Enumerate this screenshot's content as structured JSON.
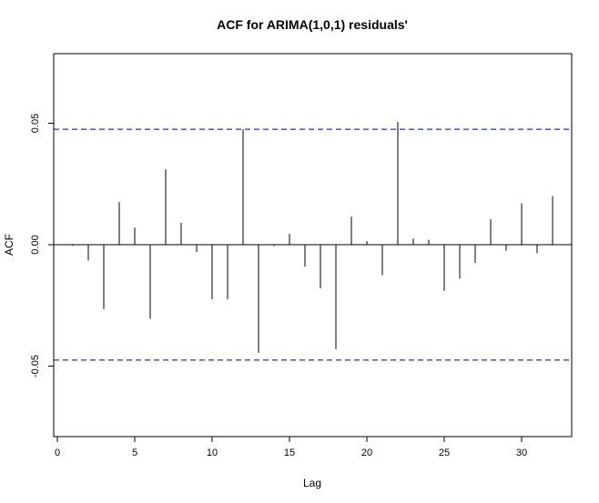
{
  "chart_data": {
    "type": "bar",
    "title": "ACF for ARIMA(1,0,1) residuals'",
    "xlabel": "Lag",
    "ylabel": "ACF",
    "xlim": [
      0,
      33
    ],
    "ylim": [
      -0.08,
      0.08
    ],
    "xticks": [
      0,
      5,
      10,
      15,
      20,
      25,
      30
    ],
    "xtick_labels": [
      "0",
      "5",
      "10",
      "15",
      "20",
      "25",
      "30"
    ],
    "yticks": [
      -0.05,
      0,
      0.05
    ],
    "ytick_labels": [
      "-0.05",
      "0.00",
      "0.05"
    ],
    "confidence_bound": 0.0475,
    "lags": [
      1,
      2,
      3,
      4,
      5,
      6,
      7,
      8,
      9,
      10,
      11,
      12,
      13,
      14,
      15,
      16,
      17,
      18,
      19,
      20,
      21,
      22,
      23,
      24,
      25,
      26,
      27,
      28,
      29,
      30,
      31,
      32
    ],
    "values": [
      -0.0005,
      -0.0065,
      -0.0265,
      0.0175,
      0.007,
      -0.0305,
      0.031,
      0.009,
      -0.003,
      -0.0225,
      -0.0225,
      0.0475,
      -0.0445,
      -0.0005,
      0.0045,
      -0.009,
      -0.018,
      -0.043,
      0.0115,
      0.0015,
      -0.0125,
      0.0505,
      0.0025,
      0.002,
      -0.019,
      -0.014,
      -0.0075,
      0.0105,
      -0.0025,
      0.017,
      -0.0035,
      0.02
    ],
    "grid": false,
    "colors": {
      "bars": "#000000",
      "bounds": "#00008b",
      "axes": "#000000"
    }
  }
}
